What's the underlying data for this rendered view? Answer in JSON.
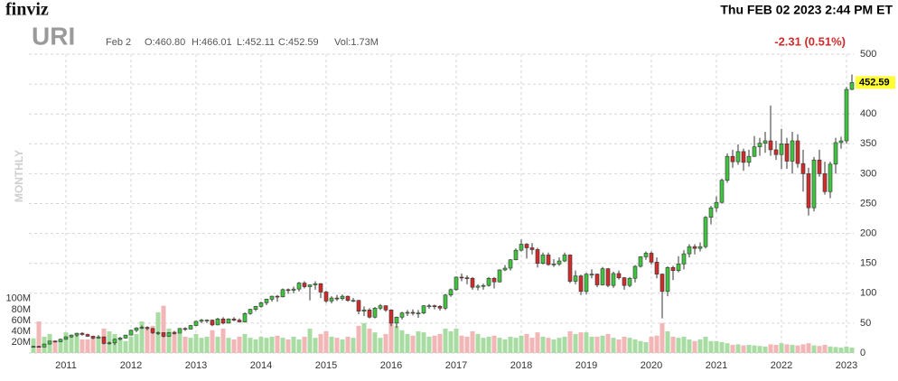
{
  "header": {
    "logo": "finviz",
    "datetime": "Thu FEB 02 2023 2:44 PM ET"
  },
  "chart_data": {
    "type": "candlestick",
    "ticker": "URI",
    "date": "Feb 2",
    "open_label": "O:460.80",
    "high_label": "H:466.01",
    "low_label": "L:452.11",
    "close_label": "C:452.59",
    "volume_label": "Vol:1.73M",
    "change": "-2.31 (0.51%)",
    "period": "MONTHLY",
    "categories": [
      null,
      null,
      null,
      null,
      null,
      null,
      "2011",
      null,
      null,
      null,
      null,
      null,
      null,
      null,
      null,
      null,
      null,
      null,
      "2012",
      null,
      null,
      null,
      null,
      null,
      null,
      null,
      null,
      null,
      null,
      null,
      "2013",
      null,
      null,
      null,
      null,
      null,
      null,
      null,
      null,
      null,
      null,
      null,
      "2014",
      null,
      null,
      null,
      null,
      null,
      null,
      null,
      null,
      null,
      null,
      null,
      "2015",
      null,
      null,
      null,
      null,
      null,
      null,
      null,
      null,
      null,
      null,
      null,
      "2016",
      null,
      null,
      null,
      null,
      null,
      null,
      null,
      null,
      null,
      null,
      null,
      "2017",
      null,
      null,
      null,
      null,
      null,
      null,
      null,
      null,
      null,
      null,
      null,
      "2018",
      null,
      null,
      null,
      null,
      null,
      null,
      null,
      null,
      null,
      null,
      null,
      "2019",
      null,
      null,
      null,
      null,
      null,
      null,
      null,
      null,
      null,
      null,
      null,
      "2020",
      null,
      null,
      null,
      null,
      null,
      null,
      null,
      null,
      null,
      null,
      null,
      "2021",
      null,
      null,
      null,
      null,
      null,
      null,
      null,
      null,
      null,
      null,
      null,
      "2022",
      null,
      null,
      null,
      null,
      null,
      null,
      null,
      null,
      null,
      null,
      null,
      "2023",
      null
    ],
    "open": [
      10,
      11,
      10,
      15,
      20,
      19,
      23,
      27,
      30,
      33,
      31,
      28,
      25,
      27,
      16,
      17,
      23,
      25,
      30,
      38,
      42,
      43,
      41,
      34,
      34,
      28,
      34,
      33,
      41,
      40,
      46,
      53,
      55,
      55,
      47,
      57,
      50,
      57,
      55,
      52,
      66,
      73,
      78,
      84,
      90,
      95,
      94,
      106,
      105,
      107,
      117,
      111,
      114,
      116,
      102,
      87,
      92,
      91,
      95,
      88,
      88,
      70,
      72,
      60,
      75,
      79,
      72,
      50,
      60,
      67,
      68,
      67,
      67,
      79,
      79,
      78,
      75,
      97,
      106,
      127,
      126,
      125,
      110,
      112,
      113,
      125,
      119,
      139,
      142,
      156,
      172,
      182,
      176,
      173,
      150,
      164,
      148,
      149,
      154,
      164,
      120,
      129,
      103,
      132,
      132,
      114,
      141,
      113,
      133,
      126,
      113,
      125,
      145,
      161,
      167,
      152,
      132,
      103,
      143,
      138,
      149,
      166,
      178,
      175,
      178,
      227,
      243,
      252,
      289,
      329,
      320,
      337,
      319,
      329,
      345,
      351,
      355,
      340,
      332,
      350,
      321,
      355,
      317,
      300,
      243,
      323,
      300,
      270,
      316,
      352,
      355,
      441
    ],
    "high": [
      12,
      12,
      15.5,
      20.5,
      21,
      24,
      28,
      31,
      34,
      35,
      32.5,
      29,
      30,
      27.5,
      19,
      24,
      27,
      30.5,
      39,
      43,
      46,
      44.5,
      42,
      36,
      35,
      35,
      37,
      42,
      43,
      47,
      54,
      57,
      56.5,
      56,
      59,
      60,
      58,
      60,
      58,
      68,
      74,
      79,
      86,
      91,
      96,
      97,
      108,
      108,
      111,
      119,
      120,
      115,
      120,
      117,
      104,
      95,
      97,
      98,
      96,
      92,
      89,
      78,
      75,
      77,
      82,
      80,
      73,
      61,
      69,
      72,
      73,
      72,
      80,
      82,
      81,
      80,
      99,
      108,
      128,
      133,
      130,
      127,
      115,
      116,
      127,
      127,
      140,
      147,
      157,
      175,
      190,
      184,
      184,
      176,
      168,
      168,
      157,
      160,
      168,
      165,
      138,
      131,
      134,
      140,
      133,
      144,
      142,
      136,
      138,
      127,
      127,
      147,
      162,
      170,
      170,
      160,
      133,
      145,
      146,
      162,
      172,
      182,
      182,
      185,
      229,
      246,
      262,
      292,
      334,
      340,
      349,
      342,
      340,
      363,
      360,
      370,
      414,
      355,
      375,
      360,
      370,
      366,
      340,
      310,
      328,
      340,
      320,
      320,
      360,
      362,
      445,
      466
    ],
    "low": [
      9,
      9.5,
      9.8,
      14,
      17.5,
      18.5,
      22,
      25.5,
      27,
      29,
      27,
      23,
      24,
      14.5,
      14,
      13.5,
      21,
      24,
      29.5,
      35,
      40,
      38,
      32,
      30,
      26,
      27,
      31,
      32.5,
      37,
      39.5,
      45,
      50,
      50,
      45,
      46.5,
      48,
      49.5,
      53,
      51,
      51,
      64,
      70,
      76,
      80,
      86,
      86,
      93,
      99,
      100,
      103,
      108,
      88,
      106,
      92,
      84,
      83,
      87,
      88,
      86,
      85,
      65,
      62,
      58,
      58,
      72,
      69,
      45,
      42,
      56,
      62,
      63,
      59,
      65,
      74,
      73,
      71,
      72,
      94,
      104,
      120,
      115,
      106,
      105,
      106,
      111,
      108,
      118,
      137,
      138,
      155,
      170,
      158,
      165,
      143,
      148,
      146,
      144,
      146,
      152,
      117,
      115,
      97,
      98,
      125,
      110,
      113,
      110,
      109,
      123,
      106,
      110,
      118,
      143,
      156,
      148,
      125,
      58,
      95,
      122,
      135,
      140,
      160,
      165,
      170,
      175,
      215,
      236,
      250,
      285,
      310,
      315,
      305,
      312,
      328,
      330,
      335,
      330,
      323,
      308,
      308,
      300,
      310,
      270,
      230,
      237,
      295,
      265,
      259,
      300,
      342,
      350,
      440
    ],
    "close": [
      11,
      10,
      15,
      20,
      19,
      23,
      27,
      30,
      33,
      31,
      28,
      25,
      27,
      16,
      17,
      23,
      25,
      30,
      38,
      42,
      43,
      41,
      34,
      34,
      28,
      34,
      33,
      41,
      40,
      46,
      53,
      55,
      55,
      47,
      57,
      50,
      57,
      55,
      52,
      66,
      73,
      78,
      84,
      90,
      95,
      94,
      106,
      105,
      107,
      117,
      111,
      114,
      116,
      102,
      87,
      92,
      91,
      95,
      88,
      88,
      70,
      72,
      60,
      75,
      79,
      72,
      50,
      60,
      67,
      68,
      67,
      67,
      79,
      79,
      78,
      75,
      97,
      106,
      127,
      126,
      125,
      110,
      112,
      113,
      125,
      119,
      139,
      142,
      156,
      172,
      182,
      176,
      173,
      150,
      164,
      148,
      149,
      154,
      164,
      120,
      129,
      103,
      132,
      132,
      114,
      141,
      113,
      133,
      126,
      113,
      125,
      145,
      161,
      167,
      152,
      132,
      103,
      143,
      138,
      149,
      166,
      178,
      175,
      178,
      227,
      243,
      252,
      289,
      329,
      320,
      337,
      319,
      329,
      345,
      351,
      355,
      340,
      332,
      350,
      321,
      355,
      317,
      300,
      243,
      323,
      300,
      270,
      316,
      352,
      355,
      441,
      452.59
    ],
    "volume": [
      27,
      58,
      30,
      35,
      22,
      25,
      38,
      30,
      35,
      25,
      25,
      28,
      30,
      45,
      40,
      35,
      25,
      22,
      30,
      35,
      58,
      45,
      50,
      75,
      87,
      45,
      40,
      35,
      30,
      28,
      35,
      28,
      30,
      42,
      30,
      45,
      28,
      25,
      30,
      35,
      28,
      25,
      30,
      28,
      30,
      32,
      28,
      25,
      30,
      25,
      30,
      45,
      28,
      35,
      40,
      30,
      28,
      25,
      30,
      28,
      50,
      55,
      45,
      38,
      28,
      35,
      55,
      50,
      42,
      35,
      32,
      40,
      38,
      30,
      32,
      35,
      45,
      40,
      45,
      32,
      30,
      40,
      35,
      28,
      30,
      32,
      28,
      25,
      30,
      28,
      32,
      35,
      28,
      38,
      30,
      28,
      25,
      28,
      30,
      40,
      35,
      38,
      38,
      30,
      30,
      32,
      35,
      28,
      25,
      30,
      28,
      25,
      22,
      20,
      30,
      32,
      55,
      40,
      30,
      28,
      30,
      25,
      22,
      25,
      30,
      22,
      22,
      20,
      18,
      15,
      16,
      14,
      15,
      14,
      13,
      12,
      16,
      15,
      18,
      16,
      15,
      14,
      16,
      18,
      14,
      13,
      15,
      12,
      11,
      10,
      12,
      10
    ],
    "last_price": 452.59,
    "ylim": [
      0,
      500
    ],
    "yticks": [
      0,
      50,
      100,
      150,
      200,
      250,
      300,
      350,
      400,
      450,
      500
    ],
    "volume_ylim": [
      0,
      550
    ],
    "volume_ticks": [
      {
        "value": 20,
        "label": "20M"
      },
      {
        "value": 40,
        "label": "40M"
      },
      {
        "value": 60,
        "label": "60M"
      },
      {
        "value": 80,
        "label": "80M"
      },
      {
        "value": 100,
        "label": "100M"
      }
    ],
    "grid": true,
    "colors": {
      "up": "#3fc43f",
      "down": "#d22b2b",
      "wick": "#333333",
      "volume_up": "#a9dca3",
      "volume_down": "#f3b6b6",
      "change": "#d22b2b",
      "last_price": "#ffff33"
    }
  }
}
